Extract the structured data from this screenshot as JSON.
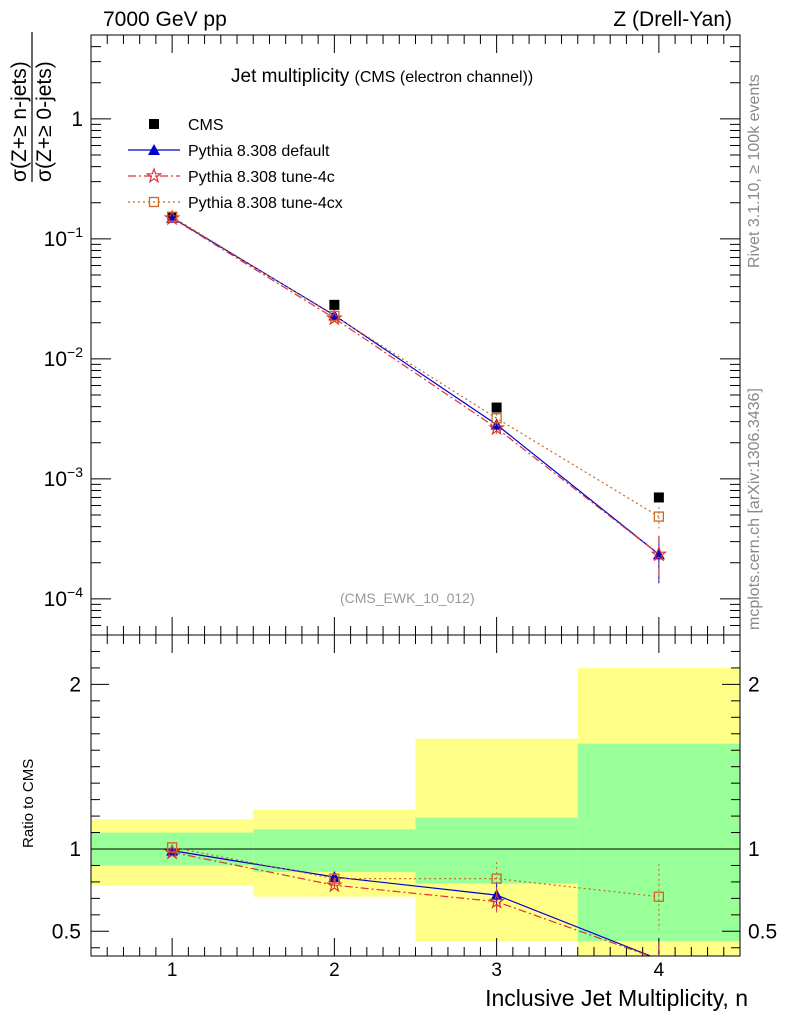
{
  "header": {
    "left": "7000 GeV pp",
    "right": "Z (Drell-Yan)"
  },
  "title": {
    "main": "Jet multiplicity",
    "sub": "(CMS (electron channel))"
  },
  "watermark": "(CMS_EWK_10_012)",
  "side_labels": {
    "rivet": "Rivet 3.1.10, ≥ 100k events",
    "mcplots": "mcplots.cern.ch [arXiv:1306.3436]"
  },
  "y_label": {
    "numerator": "σ(Z+≥ n-jets)",
    "denominator": "σ(Z+≥ 0-jets)"
  },
  "ratio_ylabel": "Ratio to CMS",
  "x_label": "Inclusive Jet Multiplicity, n",
  "chart_data": [
    {
      "type": "line",
      "scale": "log",
      "x": [
        1,
        2,
        3,
        4
      ],
      "xlim": [
        0.5,
        4.5
      ],
      "ylim": [
        5e-05,
        5
      ],
      "yticks": [
        {
          "value": 1,
          "base": "1",
          "exp": ""
        },
        {
          "value": 0.1,
          "base": "10",
          "exp": "−1"
        },
        {
          "value": 0.01,
          "base": "10",
          "exp": "−2"
        },
        {
          "value": 0.001,
          "base": "10",
          "exp": "−3"
        },
        {
          "value": 0.0001,
          "base": "10",
          "exp": "−4"
        }
      ],
      "series": [
        {
          "name": "CMS",
          "values": [
            0.152,
            0.0282,
            0.00393,
            0.0007
          ],
          "color": "#000000",
          "marker": "square"
        },
        {
          "name": "Pythia 8.308 default",
          "values": [
            0.15,
            0.0231,
            0.00283,
            0.000235
          ],
          "err": [
            0.002,
            0.0007,
            0.0003,
            0.0001
          ],
          "color": "#0000cc",
          "marker": "triangle"
        },
        {
          "name": "Pythia 8.308 tune-4c",
          "values": [
            0.149,
            0.0218,
            0.00265,
            0.000235
          ],
          "err": [
            0.002,
            0.0008,
            0.0004,
            0.0001
          ],
          "color": "#dd3333",
          "marker": "star"
        },
        {
          "name": "Pythia 8.308 tune-4cx",
          "values": [
            0.153,
            0.0228,
            0.0032,
            0.000485
          ],
          "err": [
            0.002,
            0.0007,
            0.0003,
            0.0001
          ],
          "color": "#cc6622",
          "marker": "opensquare"
        }
      ]
    },
    {
      "type": "line",
      "x": [
        1,
        2,
        3,
        4
      ],
      "xlim": [
        0.5,
        4.5
      ],
      "ylim": [
        0.35,
        2.3
      ],
      "yticks": [
        0.5,
        1,
        2
      ],
      "xticks": [
        1,
        2,
        3,
        4
      ],
      "bands": {
        "edges": [
          0.5,
          1.5,
          2.5,
          3.5,
          4.5
        ],
        "green": [
          [
            0.9,
            1.1
          ],
          [
            0.86,
            1.12
          ],
          [
            0.79,
            1.19
          ],
          [
            0.44,
            1.64
          ]
        ],
        "yellow": [
          [
            0.78,
            1.18
          ],
          [
            0.71,
            1.24
          ],
          [
            0.44,
            1.67
          ],
          [
            0.35,
            2.1
          ]
        ]
      },
      "series": [
        {
          "name": "Pythia 8.308 default",
          "values": [
            0.99,
            0.83,
            0.72,
            0.33
          ],
          "err": [
            0.01,
            0.03,
            0.08,
            0.1
          ]
        },
        {
          "name": "Pythia 8.308 tune-4c",
          "values": [
            0.98,
            0.78,
            0.68,
            0.33
          ],
          "err": [
            0.01,
            0.03,
            0.08,
            0.1
          ]
        },
        {
          "name": "Pythia 8.308 tune-4cx",
          "values": [
            1.01,
            0.82,
            0.82,
            0.71
          ],
          "err": [
            0.01,
            0.03,
            0.1,
            0.2
          ]
        }
      ]
    }
  ]
}
